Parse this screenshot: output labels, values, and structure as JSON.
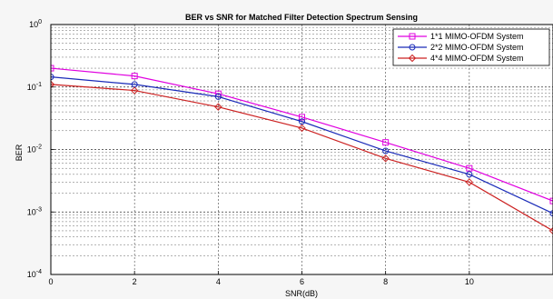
{
  "chart_data": {
    "type": "line",
    "title": "BER vs SNR for Matched Filter Detection Spectrum Sensing",
    "xlabel": "SNR(dB)",
    "ylabel": "BER",
    "xlim": [
      0,
      12
    ],
    "ylim": [
      0.0001,
      1
    ],
    "yscale": "log",
    "grid": true,
    "legend_position": "top-right",
    "x_ticks": [
      0,
      2,
      4,
      6,
      8,
      10
    ],
    "x_tick_labels": [
      "0",
      "2",
      "4",
      "6",
      "8",
      "10"
    ],
    "y_ticks": [
      1,
      0.1,
      0.01,
      0.001,
      0.0001
    ],
    "y_tick_bases": [
      "10",
      "10",
      "10",
      "10",
      "10"
    ],
    "y_tick_exps": [
      "0",
      "-1",
      "-2",
      "-3",
      "-4"
    ],
    "series": [
      {
        "name": "1*1 MIMO-OFDM System",
        "color": "#e000e0",
        "marker": "square",
        "x": [
          0,
          2,
          4,
          6,
          8,
          10,
          12
        ],
        "y": [
          0.2,
          0.15,
          0.078,
          0.033,
          0.013,
          0.005,
          0.0015
        ]
      },
      {
        "name": "2*2 MIMO-OFDM System",
        "color": "#1a2bb8",
        "marker": "circle",
        "x": [
          0,
          2,
          4,
          6,
          8,
          10,
          12
        ],
        "y": [
          0.145,
          0.11,
          0.07,
          0.028,
          0.0095,
          0.004,
          0.00095
        ]
      },
      {
        "name": "4*4 MIMO-OFDM System",
        "color": "#cc2222",
        "marker": "diamond",
        "x": [
          0,
          2,
          4,
          6,
          8,
          10,
          12
        ],
        "y": [
          0.11,
          0.088,
          0.048,
          0.022,
          0.0072,
          0.003,
          0.0005
        ]
      }
    ]
  }
}
